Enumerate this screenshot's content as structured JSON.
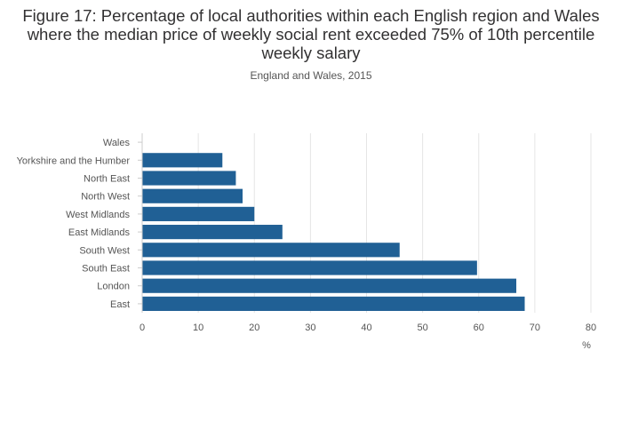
{
  "title": "Figure 17: Percentage of local authorities within each English region and Wales where the median price of weekly social rent exceeded 75% of 10th percentile weekly salary",
  "subtitle": "England and Wales, 2015",
  "chart_data": {
    "type": "bar",
    "orientation": "horizontal",
    "categories": [
      "Wales",
      "Yorkshire and the Humber",
      "North East",
      "North West",
      "West Midlands",
      "East Midlands",
      "South West",
      "South East",
      "London",
      "East"
    ],
    "values": [
      0,
      14.3,
      16.7,
      17.9,
      20.0,
      25.0,
      45.9,
      59.7,
      66.7,
      68.2
    ],
    "xlabel": "%",
    "xlim": [
      0,
      80
    ],
    "xticks": [
      0,
      10,
      20,
      30,
      40,
      50,
      60,
      70,
      80
    ],
    "grid": true,
    "bar_color": "#206095",
    "grid_color": "#e5e5e5"
  }
}
